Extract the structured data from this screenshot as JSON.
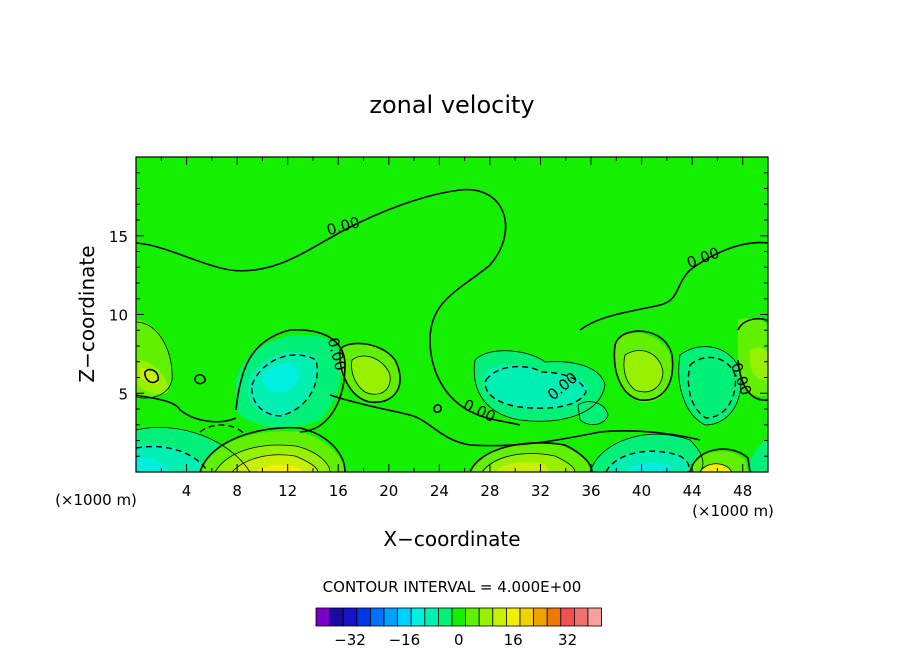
{
  "chart_data": {
    "type": "contour",
    "title": "zonal velocity",
    "xlabel": "X−coordinate",
    "ylabel": "Z−coordinate",
    "x_unit_label": "(×1000 m)",
    "xlim": [
      0,
      50
    ],
    "ylim": [
      0,
      20
    ],
    "x_ticks": [
      4,
      8,
      12,
      16,
      20,
      24,
      28,
      32,
      36,
      40,
      44,
      48
    ],
    "y_ticks": [
      5,
      10,
      15
    ],
    "contour_interval_text": "CONTOUR INTERVAL = 4.000E+00",
    "contour_interval": 4,
    "contour_labels": [
      {
        "text": "0.00",
        "x": 16.5,
        "y": 15.3
      },
      {
        "text": "0.00",
        "x": 45.0,
        "y": 13.3
      },
      {
        "text": "0.00",
        "x": 15.5,
        "y": 7.4
      },
      {
        "text": "0.00",
        "x": 27.0,
        "y": 3.6
      },
      {
        "text": "0.00",
        "x": 34.0,
        "y": 5.2
      },
      {
        "text": "0.00",
        "x": 47.5,
        "y": 5.8
      }
    ],
    "colorbar": {
      "ticks": [
        "−32",
        "−16",
        "0",
        "16",
        "32"
      ],
      "levels": [
        -40,
        -36,
        -32,
        -28,
        -24,
        -20,
        -16,
        -12,
        -8,
        -4,
        0,
        4,
        8,
        12,
        16,
        20,
        24,
        28,
        32,
        36,
        40
      ],
      "colors": [
        "#7a00c8",
        "#1a0aa0",
        "#1414c8",
        "#0038e6",
        "#0070ff",
        "#00a0ff",
        "#00d0ff",
        "#00f0e0",
        "#00f0b4",
        "#00f078",
        "#14f000",
        "#60f000",
        "#96f000",
        "#c8f000",
        "#f0f000",
        "#f0d200",
        "#f0a000",
        "#f07800",
        "#f05050",
        "#f07070",
        "#f8a0a0"
      ]
    }
  }
}
